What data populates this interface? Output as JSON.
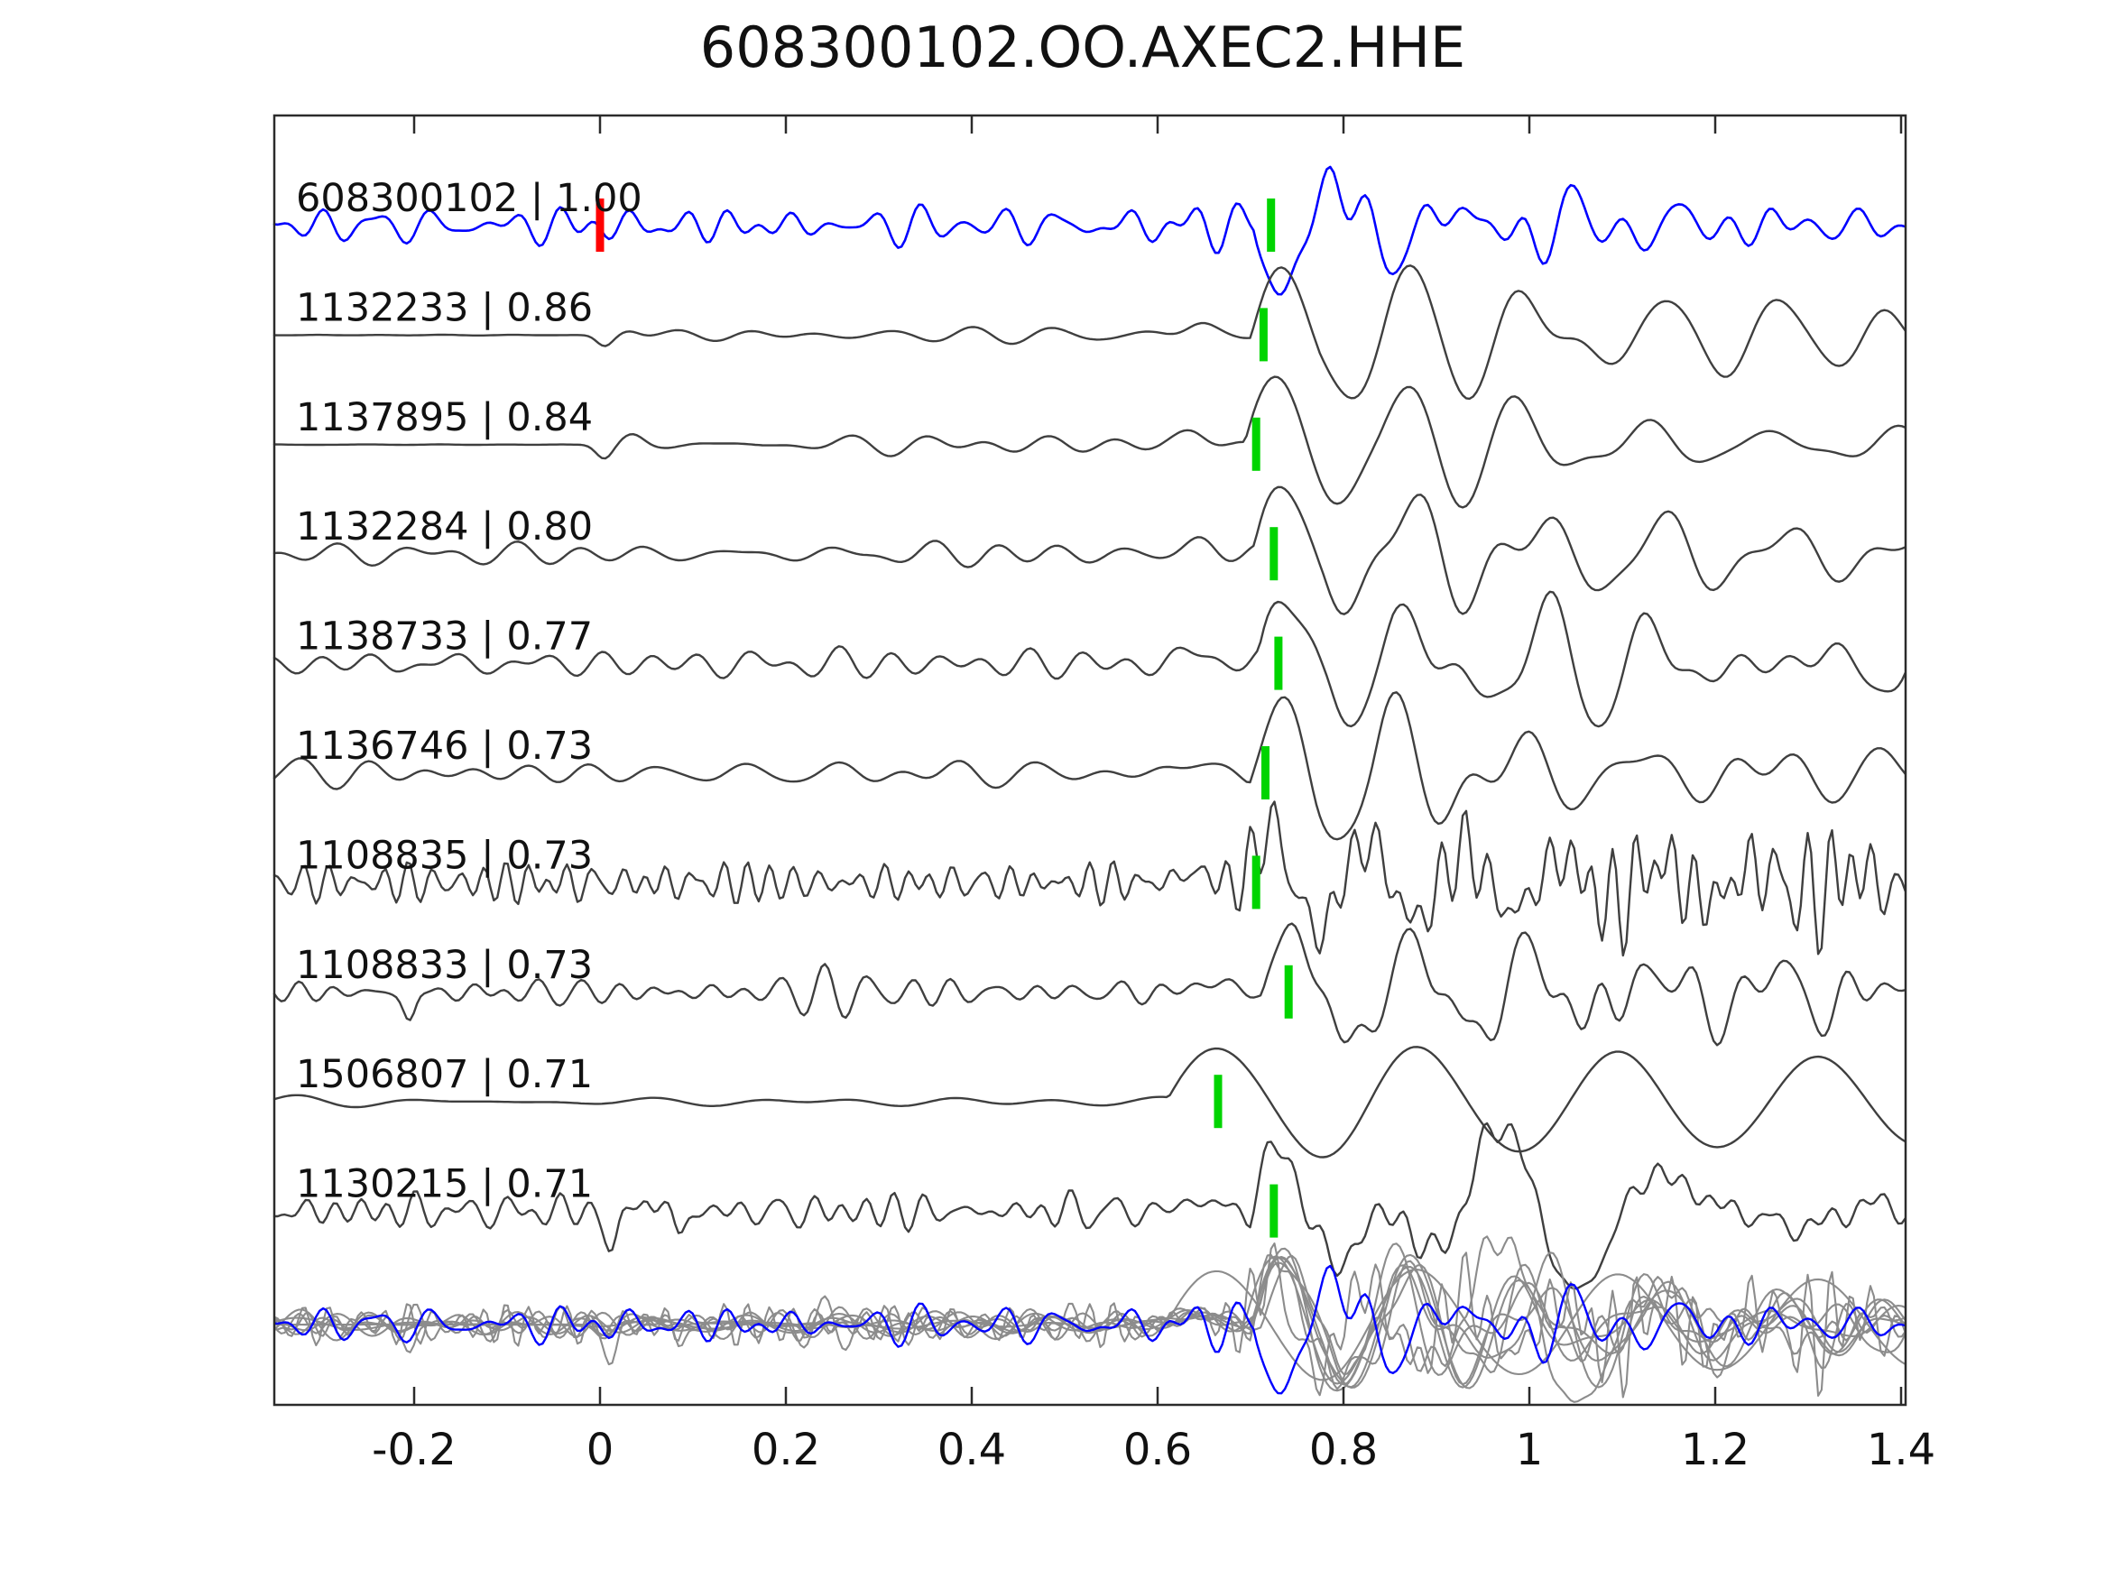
{
  "title": "608300102.OO.AXEC2.HHE",
  "colors": {
    "background": "#ffffff",
    "border": "#2b2b2b",
    "text": "#111111",
    "template_trace": "#0000ff",
    "detection_trace": "#3f3f3f",
    "overlay_trace": "#8c8c8c",
    "pick_green": "#00d400",
    "pick_red": "#ff0000"
  },
  "axis": {
    "xlim": [
      -0.3505,
      1.4049
    ],
    "xticks": [
      -0.2,
      0,
      0.2,
      0.4,
      0.6,
      0.8,
      1,
      1.2,
      1.4
    ],
    "xtick_labels": [
      "-0.2",
      "0",
      "0.2",
      "0.4",
      "0.6",
      "0.8",
      "1",
      "1.2",
      "1.4"
    ],
    "yticks": [],
    "grid": false
  },
  "chart_data": {
    "type": "line",
    "title": "608300102.OO.AXEC2.HHE",
    "xlabel": "",
    "ylabel": "",
    "xlim": [
      -0.3505,
      1.4049
    ],
    "legend": "none",
    "traces": [
      {
        "id": "608300102",
        "cc": "1.00",
        "label": "608300102 | 1.00",
        "role": "template",
        "color": "#0000ff",
        "lw": 2.6,
        "picks": [
          {
            "t": 0.0,
            "color": "#ff0000"
          },
          {
            "t": 0.722,
            "color": "#00d400"
          }
        ],
        "wf": {
          "seed": 101,
          "noise": 10.5,
          "nf": [
            13,
            30
          ],
          "pol": -1,
          "A": 80,
          "T": 0.125,
          "t0": 0.703,
          "tw": 0.19,
          "bump": 0,
          "coda": 13,
          "cf": [
            10,
            22
          ],
          "ct": 2.5
        }
      },
      {
        "id": "1132233",
        "cc": "0.86",
        "label": "1132233 | 0.86",
        "role": "detection",
        "color": "#3f3f3f",
        "lw": 2.4,
        "picks": [
          {
            "t": 0.714,
            "color": "#00d400"
          }
        ],
        "wf": {
          "seed": 202,
          "noise": 5,
          "nf": [
            7,
            16
          ],
          "flat_until": -0.025,
          "spikes": [
            {
              "t": 0.005,
              "a": -12,
              "w": 0.012
            },
            {
              "t": 0.032,
              "a": 6,
              "w": 0.015
            }
          ],
          "bump": 13,
          "pol": 1,
          "A": 78,
          "T": 0.135,
          "t0": 0.7,
          "tw": 0.45,
          "coda": 24,
          "cf": [
            7,
            13
          ],
          "ct": 0.55
        }
      },
      {
        "id": "1137895",
        "cc": "0.84",
        "label": "1137895 | 0.84",
        "role": "detection",
        "color": "#3f3f3f",
        "lw": 2.4,
        "picks": [
          {
            "t": 0.706,
            "color": "#00d400"
          }
        ],
        "wf": {
          "seed": 303,
          "noise": 5.5,
          "nf": [
            7,
            16
          ],
          "flat_until": -0.025,
          "spikes": [
            {
              "t": 0.005,
              "a": -14,
              "w": 0.012
            },
            {
              "t": 0.036,
              "a": 7,
              "w": 0.015
            }
          ],
          "bump": 14,
          "pol": 1,
          "A": 82,
          "T": 0.135,
          "t0": 0.694,
          "tw": 0.45,
          "coda": 26,
          "cf": [
            7,
            13
          ],
          "ct": 0.55
        }
      },
      {
        "id": "1132284",
        "cc": "0.80",
        "label": "1132284 | 0.80",
        "role": "detection",
        "color": "#3f3f3f",
        "lw": 2.4,
        "picks": [
          {
            "t": 0.725,
            "color": "#00d400"
          }
        ],
        "wf": {
          "seed": 404,
          "noise": 6,
          "nf": [
            8,
            18
          ],
          "bump": 14,
          "pol": 1,
          "A": 82,
          "T": 0.135,
          "t0": 0.704,
          "tw": 0.45,
          "coda": 27,
          "cf": [
            7,
            14
          ],
          "ct": 0.6
        }
      },
      {
        "id": "1138733",
        "cc": "0.77",
        "label": "1138733 | 0.77",
        "role": "detection",
        "color": "#3f3f3f",
        "lw": 2.4,
        "picks": [
          {
            "t": 0.73,
            "color": "#00d400"
          }
        ],
        "wf": {
          "seed": 505,
          "noise": 7.5,
          "nf": [
            9,
            20
          ],
          "bump": 15,
          "pol": 1,
          "A": 78,
          "T": 0.135,
          "t0": 0.709,
          "tw": 0.45,
          "coda": 28,
          "cf": [
            7,
            14
          ],
          "ct": 0.6
        }
      },
      {
        "id": "1136746",
        "cc": "0.73",
        "label": "1136746 | 0.73",
        "role": "detection",
        "color": "#3f3f3f",
        "lw": 2.4,
        "picks": [
          {
            "t": 0.716,
            "color": "#00d400"
          }
        ],
        "wf": {
          "seed": 606,
          "noise": 7.5,
          "nf": [
            8,
            18
          ],
          "bump": 13,
          "pol": 1,
          "A": 74,
          "T": 0.13,
          "t0": 0.699,
          "tw": 0.45,
          "coda": 26,
          "cf": [
            8,
            15
          ],
          "ct": 0.7
        }
      },
      {
        "id": "1108835",
        "cc": "0.73",
        "label": "1108835 | 0.73",
        "role": "detection",
        "color": "#3f3f3f",
        "lw": 2.4,
        "picks": [
          {
            "t": 0.706,
            "color": "#00d400"
          }
        ],
        "wf": {
          "seed": 707,
          "noise": 10,
          "nf": [
            24,
            50
          ],
          "bump": 12,
          "pol": 1,
          "A": 64,
          "T": 0.105,
          "t0": 0.694,
          "tw": 0.4,
          "coda": 26,
          "cf": [
            28,
            52
          ],
          "ct": 6
        }
      },
      {
        "id": "1108833",
        "cc": "0.73",
        "label": "1108833 | 0.73",
        "role": "detection",
        "color": "#3f3f3f",
        "lw": 2.4,
        "picks": [
          {
            "t": 0.741,
            "color": "#00d400"
          }
        ],
        "wf": {
          "seed": 808,
          "noise": 10,
          "nf": [
            15,
            32
          ],
          "spikes": [
            {
              "t": -0.205,
              "a": -32,
              "w": 0.009
            }
          ],
          "bump": 13,
          "pol": 1,
          "A": 72,
          "T": 0.13,
          "t0": 0.712,
          "tw": 0.42,
          "coda": 20,
          "cf": [
            10,
            22
          ],
          "ct": 1.1
        }
      },
      {
        "id": "1506807",
        "cc": "0.71",
        "label": "1506807 | 0.71",
        "role": "detection",
        "color": "#3f3f3f",
        "lw": 2.4,
        "picks": [
          {
            "t": 0.665,
            "color": "#00d400"
          }
        ],
        "wf": {
          "seed": 909,
          "noise": 2.2,
          "nf": [
            5,
            11
          ],
          "bump": 0,
          "pol": 1,
          "A": 66,
          "T": 0.215,
          "t0": 0.612,
          "tw": 2.4,
          "coda": 0,
          "cf": [
            5,
            10
          ],
          "ct": 1
        }
      },
      {
        "id": "1130215",
        "cc": "0.71",
        "label": "1130215 | 0.71",
        "role": "detection",
        "color": "#3f3f3f",
        "lw": 2.4,
        "picks": [
          {
            "t": 0.725,
            "color": "#00d400"
          }
        ],
        "wf": {
          "seed": 1010,
          "noise": 9.5,
          "nf": [
            17,
            38
          ],
          "spikes": [
            {
              "t": 0.013,
              "a": -44,
              "w": 0.009
            },
            {
              "t": 0.05,
              "a": 22,
              "w": 0.008
            },
            {
              "t": 0.085,
              "a": -24,
              "w": 0.008
            }
          ],
          "bump": 14,
          "pol": 1,
          "A": 74,
          "T": 0.125,
          "t0": 0.699,
          "tw": 0.38,
          "coda": 42,
          "cf": [
            3.5,
            8.5
          ],
          "ct": 1.1
        }
      }
    ],
    "overlay_row": {
      "description_label": "",
      "gray_color": "#8c8c8c",
      "gray_lw": 2.1,
      "template_color": "#0000ff",
      "template_lw": 2.4,
      "scale": 1.0
    }
  }
}
